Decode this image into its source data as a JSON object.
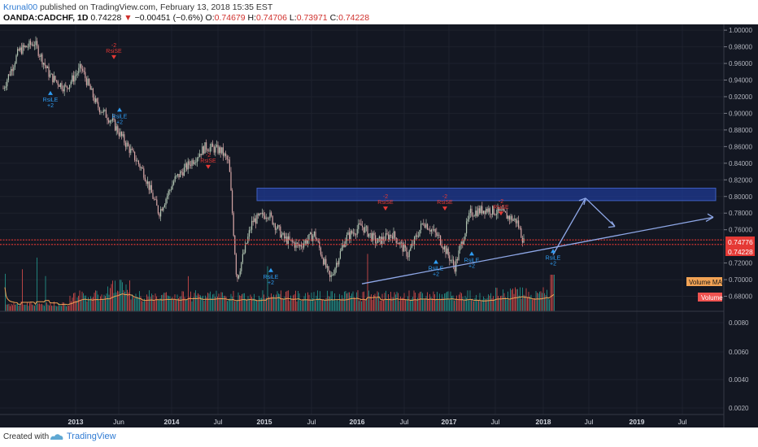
{
  "header": {
    "username": "Krunal00",
    "published_text": " published on TradingView.com, February 13, 2018 15:35 EST",
    "symbol": "OANDA:CADCHF, 1D",
    "last": "0.74228",
    "change_arrow": "▼",
    "change": "−0.00451 (−0.6%)",
    "open_label": "O:",
    "open": "0.74679",
    "high_label": "H:",
    "high": "0.74706",
    "low_label": "L:",
    "low": "0.73971",
    "close_label": "C:",
    "close": "0.74228"
  },
  "price_axis": [
    "1.00000",
    "0.98000",
    "0.96000",
    "0.94000",
    "0.92000",
    "0.90000",
    "0.88000",
    "0.86000",
    "0.84000",
    "0.82000",
    "0.80000",
    "0.78000",
    "0.76000",
    "0.72000",
    "0.70000",
    "0.68000"
  ],
  "price_tags": {
    "upper": "0.74776",
    "lower": "0.74228"
  },
  "volume_axis": [
    "0.0080",
    "0.0060",
    "0.0040",
    "0.0020"
  ],
  "time_axis": [
    "2013",
    "Jun",
    "2014",
    "Jul",
    "2015",
    "Jul",
    "2016",
    "Jul",
    "2017",
    "Jul",
    "2018",
    "Jul",
    "2019",
    "Jul"
  ],
  "labels": {
    "volume_ma": "Volume MA",
    "volume": "Volume"
  },
  "markers_short": {
    "top": "-2",
    "bottom": "RsiSE"
  },
  "markers_long": {
    "top": "RsiLE",
    "bottom": "+2"
  },
  "colors": {
    "background": "#131722",
    "zone": "#1f3a93",
    "support": "#e53935",
    "projection": "#8fa8e8",
    "candle_up": "#b0c4b1",
    "candle_down": "#d4a5a5",
    "vol_up": "#26a69a",
    "vol_down": "#ef5350"
  },
  "chart_data": {
    "type": "line",
    "series": [
      {
        "x": [
          "2012-07",
          "2012-09",
          "2012-11",
          "2013-01",
          "2013-03",
          "2013-05",
          "2013-07",
          "2013-09",
          "2013-11",
          "2014-01",
          "2014-03",
          "2014-05",
          "2014-07",
          "2014-09",
          "2014-11",
          "2014-12",
          "2015-01",
          "2015-03",
          "2015-05",
          "2015-07",
          "2015-09",
          "2015-11",
          "2016-01",
          "2016-03",
          "2016-05",
          "2016-07",
          "2016-09",
          "2016-11",
          "2017-01",
          "2017-03",
          "2017-05",
          "2017-07",
          "2017-09",
          "2017-11",
          "2018-01",
          "2018-02"
        ],
        "values": [
          0.93,
          0.975,
          0.985,
          0.945,
          0.93,
          0.955,
          0.91,
          0.89,
          0.86,
          0.83,
          0.78,
          0.82,
          0.84,
          0.86,
          0.855,
          0.84,
          0.7,
          0.77,
          0.78,
          0.75,
          0.74,
          0.755,
          0.7,
          0.75,
          0.765,
          0.745,
          0.755,
          0.73,
          0.77,
          0.75,
          0.715,
          0.78,
          0.785,
          0.78,
          0.77,
          0.742
        ]
      }
    ],
    "ylim": [
      0.66,
      1.005
    ],
    "resistance_zone": [
      0.795,
      0.81
    ],
    "support_lines": [
      0.74776,
      0.74228
    ]
  }
}
